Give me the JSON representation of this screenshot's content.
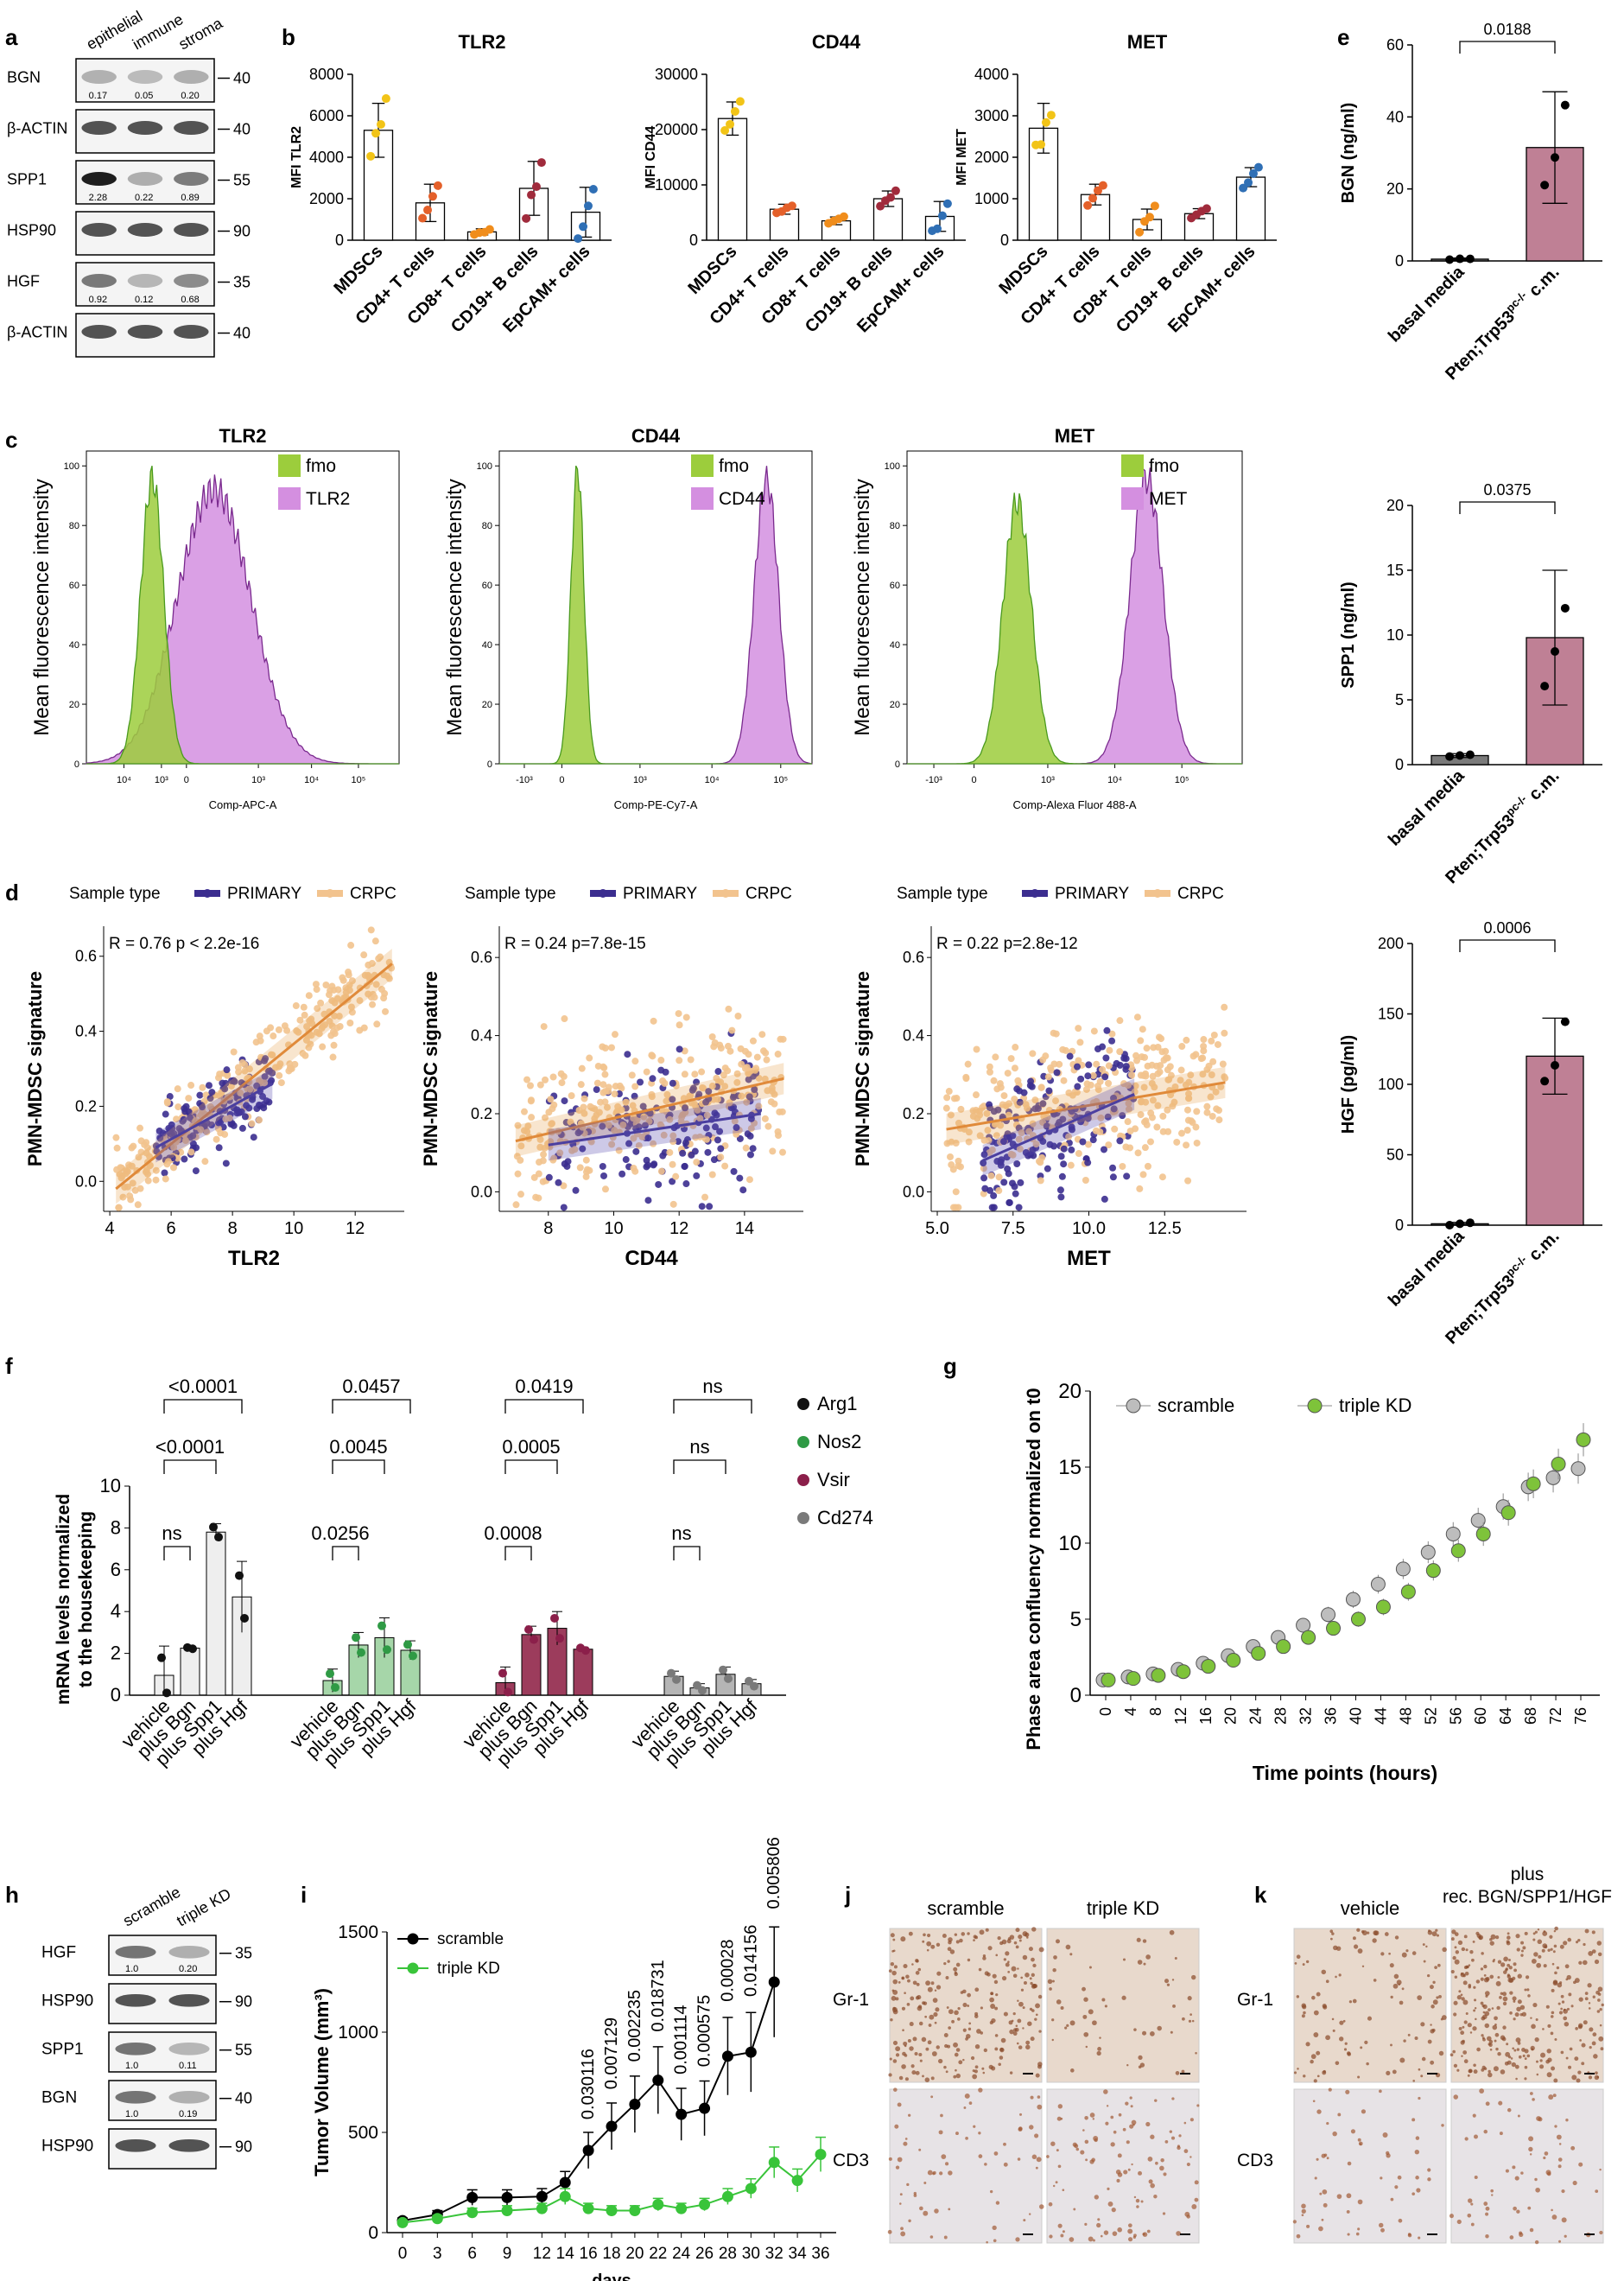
{
  "panels": {
    "a": "a",
    "b": "b",
    "c": "c",
    "d": "d",
    "e": "e",
    "f": "f",
    "g": "g",
    "h": "h",
    "i": "i",
    "j": "j",
    "k": "k"
  },
  "panel_a": {
    "columns": [
      "epithelial",
      "immune",
      "stroma"
    ],
    "rows": [
      {
        "label": "BGN",
        "mw": "40",
        "quants": [
          "0.17",
          "0.05",
          "0.20"
        ]
      },
      {
        "label": "β-ACTIN",
        "mw": "40",
        "quants": []
      },
      {
        "label": "SPP1",
        "mw": "55",
        "quants": [
          "2.28",
          "0.22",
          "0.89"
        ]
      },
      {
        "label": "HSP90",
        "mw": "90",
        "quants": []
      },
      {
        "label": "HGF",
        "mw": "35",
        "quants": [
          "0.92",
          "0.12",
          "0.68"
        ]
      },
      {
        "label": "β-ACTIN",
        "mw": "40",
        "quants": []
      }
    ]
  },
  "chart_data": [
    {
      "id": "b1",
      "type": "bar",
      "title": "TLR2",
      "ylabel": "MFI TLR2",
      "ylim": [
        0,
        8000
      ],
      "yticks": [
        "0",
        "2000",
        "4000",
        "6000",
        "8000"
      ],
      "categories": [
        "MDSCs",
        "CD4+ T cells",
        "CD8+ T cells",
        "CD19+ B cells",
        "EpCAM+ cells"
      ],
      "values": [
        5300,
        1800,
        400,
        2500,
        1350
      ],
      "errors": [
        1300,
        900,
        150,
        1300,
        1200
      ],
      "colors": [
        "#f2c417",
        "#e4602a",
        "#f08d1c",
        "#a02b3c",
        "#2f6fb5"
      ]
    },
    {
      "id": "b2",
      "type": "bar",
      "title": "CD44",
      "ylabel": "MFI CD44",
      "ylim": [
        0,
        30000
      ],
      "yticks": [
        "0",
        "10000",
        "20000",
        "30000"
      ],
      "categories": [
        "MDSCs",
        "CD4+ T cells",
        "CD8+ T cells",
        "CD19+ B cells",
        "EpCAM+ cells"
      ],
      "values": [
        22000,
        5600,
        3500,
        7500,
        4300
      ],
      "errors": [
        3000,
        900,
        700,
        1400,
        2700
      ],
      "colors": [
        "#f2c417",
        "#e4602a",
        "#f08d1c",
        "#a02b3c",
        "#2f6fb5"
      ]
    },
    {
      "id": "b3",
      "type": "bar",
      "title": "MET",
      "ylabel": "MFI MET",
      "ylim": [
        0,
        4000
      ],
      "yticks": [
        "0",
        "1000",
        "2000",
        "3000",
        "4000"
      ],
      "categories": [
        "MDSCs",
        "CD4+ T cells",
        "CD8+ T cells",
        "CD19+ B cells",
        "EpCAM+ cells"
      ],
      "values": [
        2700,
        1100,
        500,
        640,
        1520
      ],
      "errors": [
        600,
        250,
        250,
        120,
        230
      ],
      "colors": [
        "#f2c417",
        "#e4602a",
        "#f08d1c",
        "#a02b3c",
        "#2f6fb5"
      ]
    },
    {
      "id": "c1",
      "type": "area",
      "title": "TLR2",
      "ylabel": "Mean fluorescence intensity",
      "xlabel": "Comp-APC-A",
      "yticks": [
        "0",
        "20",
        "40",
        "60",
        "80",
        "100"
      ],
      "xticks": [
        "10⁴",
        "10³",
        "0",
        "10³",
        "10⁴",
        "10⁵"
      ],
      "legend": [
        "fmo",
        "TLR2"
      ],
      "colors": [
        "#9ccd3c",
        "#d48fe0"
      ],
      "series": [
        {
          "name": "fmo",
          "peak_log": -0.6,
          "sd": 0.28,
          "height": 96
        },
        {
          "name": "TLR2",
          "peak_log": 0.9,
          "sd": 0.9,
          "height": 92
        }
      ]
    },
    {
      "id": "c2",
      "type": "area",
      "title": "CD44",
      "ylabel": "Mean fluorescence intensity",
      "xlabel": "Comp-PE-Cy7-A",
      "yticks": [
        "0",
        "20",
        "40",
        "60",
        "80",
        "100"
      ],
      "xticks": [
        "-10³",
        "0",
        "10³",
        "10⁴",
        "10⁵"
      ],
      "legend": [
        "fmo",
        "CD44"
      ],
      "colors": [
        "#9ccd3c",
        "#d48fe0"
      ],
      "series": [
        {
          "name": "fmo",
          "peak_log": 0.0,
          "sd": 0.15,
          "height": 100
        },
        {
          "name": "CD44",
          "peak_log": 4.35,
          "sd": 0.28,
          "height": 96
        }
      ]
    },
    {
      "id": "c3",
      "type": "area",
      "title": "MET",
      "ylabel": "Mean fluorescence intensity",
      "xlabel": "Comp-Alexa Fluor 488-A",
      "yticks": [
        "0",
        "20",
        "40",
        "60",
        "80",
        "100"
      ],
      "xticks": [
        "-10³",
        "0",
        "10³",
        "10⁴",
        "10⁵"
      ],
      "legend": [
        "fmo",
        "MET"
      ],
      "colors": [
        "#9ccd3c",
        "#d48fe0"
      ],
      "series": [
        {
          "name": "fmo",
          "peak_log": 0.5,
          "sd": 0.3,
          "height": 88
        },
        {
          "name": "MET",
          "peak_log": 3.2,
          "sd": 0.35,
          "height": 96
        }
      ]
    },
    {
      "id": "d1",
      "type": "scatter",
      "xlabel": "TLR2",
      "ylabel": "PMN-MDSC signature",
      "stat": "R = 0.76  p < 2.2e-16",
      "xlim": [
        3.8,
        13.6
      ],
      "ylim": [
        -0.08,
        0.68
      ],
      "xticks": [
        4,
        6,
        8,
        10,
        12
      ],
      "yticks": [
        0.0,
        0.2,
        0.4,
        0.6
      ],
      "fits": [
        {
          "name": "CRPC",
          "x0": 4.2,
          "y0": -0.02,
          "x1": 13.2,
          "y1": 0.58
        },
        {
          "name": "PRIMARY",
          "x0": 5.5,
          "y0": 0.09,
          "x1": 9.3,
          "y1": 0.26
        }
      ],
      "legend_title": "Sample type",
      "series_names": [
        "PRIMARY",
        "CRPC"
      ],
      "colors": [
        "#3b2d8f",
        "#f2c38e"
      ]
    },
    {
      "id": "d2",
      "type": "scatter",
      "xlabel": "CD44",
      "ylabel": "PMN-MDSC signature",
      "stat": "R = 0.24  p=7.8e-15",
      "xlim": [
        6.5,
        15.8
      ],
      "ylim": [
        -0.05,
        0.68
      ],
      "xticks": [
        8,
        10,
        12,
        14
      ],
      "yticks": [
        0.0,
        0.2,
        0.4,
        0.6
      ],
      "fits": [
        {
          "name": "CRPC",
          "x0": 7.0,
          "y0": 0.13,
          "x1": 15.2,
          "y1": 0.29
        },
        {
          "name": "PRIMARY",
          "x0": 8.0,
          "y0": 0.12,
          "x1": 14.5,
          "y1": 0.2
        }
      ],
      "legend_title": "Sample type",
      "series_names": [
        "PRIMARY",
        "CRPC"
      ],
      "colors": [
        "#3b2d8f",
        "#f2c38e"
      ]
    },
    {
      "id": "d3",
      "type": "scatter",
      "xlabel": "MET",
      "ylabel": "PMN-MDSC signature",
      "stat": "R = 0.22  p=2.8e-12",
      "xlim": [
        4.8,
        15.2
      ],
      "ylim": [
        -0.05,
        0.68
      ],
      "xticks": [
        5.0,
        7.5,
        10.0,
        12.5
      ],
      "yticks": [
        0.0,
        0.2,
        0.4,
        0.6
      ],
      "xtick_labels": [
        "5.0",
        "7.5",
        "10.0",
        "12.5"
      ],
      "fits": [
        {
          "name": "CRPC",
          "x0": 5.3,
          "y0": 0.16,
          "x1": 14.5,
          "y1": 0.28
        },
        {
          "name": "PRIMARY",
          "x0": 6.5,
          "y0": 0.08,
          "x1": 11.5,
          "y1": 0.25
        }
      ],
      "legend_title": "Sample type",
      "series_names": [
        "PRIMARY",
        "CRPC"
      ],
      "colors": [
        "#3b2d8f",
        "#f2c38e"
      ]
    },
    {
      "id": "e1",
      "type": "bar",
      "ylabel": "BGN (ng/ml)",
      "ylim": [
        0,
        60
      ],
      "yticks": [
        "0",
        "20",
        "40",
        "60"
      ],
      "categories": [
        "basal media",
        "Pten;Trp53pc-/- c.m."
      ],
      "values": [
        0.5,
        31.5
      ],
      "errors": [
        0.3,
        15.5
      ],
      "pvalue": "0.0188"
    },
    {
      "id": "e2",
      "type": "bar",
      "ylabel": "SPP1 (ng/ml)",
      "ylim": [
        0,
        20
      ],
      "yticks": [
        "0",
        "5",
        "10",
        "15",
        "20"
      ],
      "categories": [
        "basal media",
        "Pten;Trp53pc-/- c.m."
      ],
      "values": [
        0.7,
        9.8
      ],
      "errors": [
        0.15,
        5.2
      ],
      "pvalue": "0.0375"
    },
    {
      "id": "e3",
      "type": "bar",
      "ylabel": "HGF (pg/ml)",
      "ylim": [
        0,
        200
      ],
      "yticks": [
        "0",
        "50",
        "100",
        "150",
        "200"
      ],
      "categories": [
        "basal media",
        "Pten;Trp53pc-/- c.m."
      ],
      "values": [
        1,
        120
      ],
      "errors": [
        1,
        27
      ],
      "pvalue": "0.0006"
    },
    {
      "id": "f",
      "type": "bar",
      "ylabel": "mRNA levels normalized to the housekeeping",
      "ylim": [
        0,
        10
      ],
      "yticks": [
        "0",
        "2",
        "4",
        "6",
        "8",
        "10"
      ],
      "groups": [
        {
          "gene": "Arg1",
          "color": "#eeeeee",
          "dot": "#111111",
          "categories": [
            "vehicle",
            "plus Bgn",
            "plus Spp1",
            "plus Hgf"
          ],
          "values": [
            0.95,
            2.25,
            7.8,
            4.7
          ],
          "errors": [
            1.4,
            0.05,
            0.4,
            1.7
          ],
          "stats": [
            [
              "ns"
            ],
            [
              "<0.0001"
            ],
            [
              "<0.0001"
            ]
          ]
        },
        {
          "gene": "Nos2",
          "color": "#a6d6a9",
          "dot": "#2f9a45",
          "categories": [
            "vehicle",
            "plus Bgn",
            "plus Spp1",
            "plus Hgf"
          ],
          "values": [
            0.7,
            2.4,
            2.75,
            2.15
          ],
          "errors": [
            0.55,
            0.6,
            0.95,
            0.45
          ]
        },
        {
          "gene": "Vsir",
          "color": "#9c3c5c",
          "dot": "#8b1f4a",
          "categories": [
            "vehicle",
            "plus Bgn",
            "plus Spp1",
            "plus Hgf"
          ],
          "values": [
            0.6,
            2.9,
            3.2,
            2.2
          ],
          "errors": [
            0.75,
            0.4,
            0.8,
            0.1
          ]
        },
        {
          "gene": "Cd274",
          "color": "#b5b5b5",
          "dot": "#7a7a7a",
          "categories": [
            "vehicle",
            "plus Bgn",
            "plus Spp1",
            "plus Hgf"
          ],
          "values": [
            0.9,
            0.35,
            1.0,
            0.55
          ],
          "errors": [
            0.25,
            0.2,
            0.35,
            0.2
          ]
        }
      ],
      "comparisons": [
        [
          "ns",
          "0.0256",
          "0.0008",
          "ns"
        ],
        [
          "<0.0001",
          "0.0045",
          "0.0005",
          "ns"
        ],
        [
          "<0.0001",
          "0.0457",
          "0.0419",
          "ns"
        ]
      ],
      "legend": [
        "Arg1",
        "Nos2",
        "Vsir",
        "Cd274"
      ]
    },
    {
      "id": "g",
      "type": "line",
      "xlabel": "Time points (hours)",
      "ylabel": "Phase area confluency normalized on t0",
      "ylim": [
        0,
        20
      ],
      "yticks": [
        "0",
        "5",
        "10",
        "15",
        "20"
      ],
      "x": [
        0,
        4,
        8,
        12,
        16,
        20,
        24,
        28,
        32,
        36,
        40,
        44,
        48,
        52,
        56,
        60,
        64,
        68,
        72,
        76
      ],
      "series": [
        {
          "name": "scramble",
          "color": "#bdbdbd",
          "values": [
            1.0,
            1.2,
            1.4,
            1.7,
            2.1,
            2.6,
            3.2,
            3.8,
            4.6,
            5.3,
            6.3,
            7.3,
            8.3,
            9.4,
            10.6,
            11.5,
            12.4,
            13.7,
            14.3,
            14.9
          ]
        },
        {
          "name": "triple KD",
          "color": "#7ec33a",
          "values": [
            1.0,
            1.1,
            1.3,
            1.55,
            1.9,
            2.3,
            2.75,
            3.2,
            3.8,
            4.4,
            5.0,
            5.8,
            6.8,
            8.2,
            9.5,
            10.6,
            12.0,
            13.9,
            15.2,
            16.8
          ]
        }
      ]
    },
    {
      "id": "i",
      "type": "line",
      "xlabel": "days",
      "ylabel": "Tumor Volume (mm³)",
      "ylim": [
        0,
        1500
      ],
      "yticks": [
        "0",
        "500",
        "1000",
        "1500"
      ],
      "x": [
        0,
        3,
        6,
        9,
        12,
        14,
        16,
        18,
        20,
        22,
        24,
        26,
        28,
        30,
        32,
        34,
        36
      ],
      "xtick_labels": [
        "0",
        "3",
        "6",
        "9",
        "12",
        "14",
        "16",
        "18",
        "20",
        "22",
        "24",
        "26",
        "28",
        "30",
        "32",
        "34",
        "36"
      ],
      "series": [
        {
          "name": "scramble",
          "color": "#000000",
          "x": [
            0,
            3,
            6,
            9,
            12,
            14,
            16,
            18,
            20,
            22,
            24,
            26,
            28,
            30,
            32
          ],
          "values": [
            60,
            90,
            175,
            175,
            180,
            250,
            410,
            530,
            640,
            760,
            590,
            620,
            880,
            900,
            1250
          ]
        },
        {
          "name": "triple KD",
          "color": "#39c43a",
          "x": [
            0,
            3,
            6,
            9,
            12,
            14,
            16,
            18,
            20,
            22,
            24,
            26,
            28,
            30,
            32,
            34,
            36
          ],
          "values": [
            50,
            70,
            100,
            110,
            120,
            180,
            120,
            110,
            110,
            140,
            120,
            140,
            180,
            220,
            350,
            260,
            390
          ]
        }
      ],
      "pvalues": [
        "0.030116",
        "0.007129",
        "0.002235",
        "0.018731",
        "0.001114",
        "0.000575",
        "0.00028",
        "0.014156",
        "0.005806"
      ]
    }
  ],
  "panel_h": {
    "columns": [
      "scramble",
      "triple KD"
    ],
    "rows": [
      {
        "label": "HGF",
        "mw": "35",
        "quants": [
          "1.0",
          "0.20"
        ]
      },
      {
        "label": "HSP90",
        "mw": "90",
        "quants": []
      },
      {
        "label": "SPP1",
        "mw": "55",
        "quants": [
          "1.0",
          "0.11"
        ]
      },
      {
        "label": "BGN",
        "mw": "40",
        "quants": [
          "1.0",
          "0.19"
        ]
      },
      {
        "label": "HSP90",
        "mw": "90",
        "quants": []
      }
    ]
  },
  "panel_j": {
    "columns": [
      "scramble",
      "triple KD"
    ],
    "rows": [
      "Gr-1",
      "CD3"
    ]
  },
  "panel_k": {
    "columns": [
      "vehicle",
      "plus\nrec. BGN/SPP1/HGF"
    ],
    "col2_line1": "plus",
    "col2_line2": "rec. BGN/SPP1/HGF",
    "rows": [
      "Gr-1",
      "CD3"
    ]
  }
}
